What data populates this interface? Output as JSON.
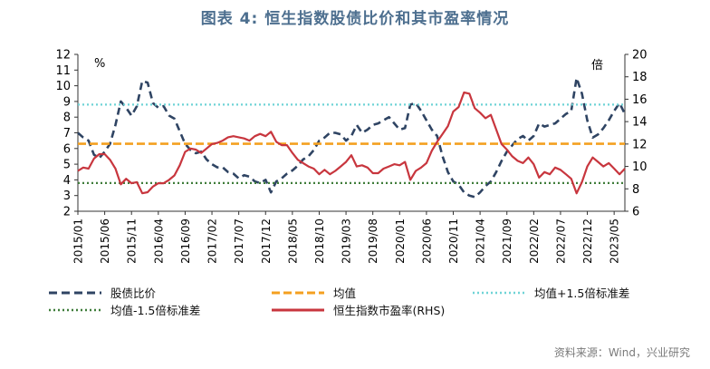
{
  "title": "图表 4:  恒生指数股债比价和其市盈率情况",
  "source": "资料来源：Wind，兴业研究",
  "colors": {
    "title": "#4d6f8f",
    "ratio": "#2f4463",
    "mean": "#f4a020",
    "upper": "#6fd3d6",
    "lower": "#3f7d3a",
    "pe": "#c8363e",
    "source": "#7a7a7a",
    "axis": "#333333"
  },
  "chart_data": {
    "type": "line",
    "left_unit": "%",
    "right_unit": "倍",
    "left_ylim": [
      2,
      12
    ],
    "right_ylim": [
      6,
      20
    ],
    "left_ticks": [
      2,
      3,
      4,
      5,
      6,
      7,
      8,
      9,
      10,
      11,
      12
    ],
    "right_ticks": [
      6,
      8,
      10,
      12,
      14,
      16,
      18,
      20
    ],
    "x_range": [
      "2015-01",
      "2023-07"
    ],
    "x_ticks": [
      "2015/01",
      "2015/06",
      "2015/11",
      "2016/04",
      "2016/09",
      "2017/02",
      "2017/07",
      "2017/12",
      "2018/05",
      "2018/10",
      "2019/03",
      "2019/08",
      "2020/01",
      "2020/06",
      "2020/11",
      "2021/04",
      "2021/09",
      "2022/02",
      "2022/07",
      "2022/12",
      "2023/05"
    ],
    "grid": false,
    "legend_position": "bottom",
    "series": [
      {
        "name": "股债比价",
        "axis": "left",
        "style": "dashed",
        "points": [
          [
            "2015-01",
            7.0
          ],
          [
            "2015-02",
            6.7
          ],
          [
            "2015-03",
            6.5
          ],
          [
            "2015-04",
            5.6
          ],
          [
            "2015-05",
            5.4
          ],
          [
            "2015-06",
            5.8
          ],
          [
            "2015-07",
            6.3
          ],
          [
            "2015-08",
            7.5
          ],
          [
            "2015-09",
            9.0
          ],
          [
            "2015-10",
            8.6
          ],
          [
            "2015-11",
            8.1
          ],
          [
            "2015-12",
            8.7
          ],
          [
            "2016-01",
            10.3
          ],
          [
            "2016-02",
            10.2
          ],
          [
            "2016-03",
            8.9
          ],
          [
            "2016-04",
            8.6
          ],
          [
            "2016-05",
            8.7
          ],
          [
            "2016-06",
            8.1
          ],
          [
            "2016-07",
            7.9
          ],
          [
            "2016-08",
            7.1
          ],
          [
            "2016-09",
            6.3
          ],
          [
            "2016-10",
            5.9
          ],
          [
            "2016-11",
            5.7
          ],
          [
            "2016-12",
            5.8
          ],
          [
            "2017-01",
            5.3
          ],
          [
            "2017-02",
            5.0
          ],
          [
            "2017-03",
            4.8
          ],
          [
            "2017-04",
            4.8
          ],
          [
            "2017-05",
            4.5
          ],
          [
            "2017-06",
            4.4
          ],
          [
            "2017-07",
            4.1
          ],
          [
            "2017-08",
            4.3
          ],
          [
            "2017-09",
            4.2
          ],
          [
            "2017-10",
            3.9
          ],
          [
            "2017-11",
            3.8
          ],
          [
            "2017-12",
            4.0
          ],
          [
            "2018-01",
            3.2
          ],
          [
            "2018-02",
            3.9
          ],
          [
            "2018-03",
            4.1
          ],
          [
            "2018-04",
            4.4
          ],
          [
            "2018-05",
            4.6
          ],
          [
            "2018-06",
            4.9
          ],
          [
            "2018-07",
            5.3
          ],
          [
            "2018-08",
            5.5
          ],
          [
            "2018-09",
            5.9
          ],
          [
            "2018-10",
            6.5
          ],
          [
            "2018-11",
            6.7
          ],
          [
            "2018-12",
            7.0
          ],
          [
            "2019-01",
            7.0
          ],
          [
            "2019-02",
            6.9
          ],
          [
            "2019-03",
            6.5
          ],
          [
            "2019-04",
            6.8
          ],
          [
            "2019-05",
            7.5
          ],
          [
            "2019-06",
            7.0
          ],
          [
            "2019-07",
            7.2
          ],
          [
            "2019-08",
            7.5
          ],
          [
            "2019-09",
            7.6
          ],
          [
            "2019-10",
            7.8
          ],
          [
            "2019-11",
            8.0
          ],
          [
            "2019-12",
            7.6
          ],
          [
            "2020-01",
            7.2
          ],
          [
            "2020-02",
            7.3
          ],
          [
            "2020-03",
            8.8
          ],
          [
            "2020-04",
            8.9
          ],
          [
            "2020-05",
            8.4
          ],
          [
            "2020-06",
            7.8
          ],
          [
            "2020-07",
            7.2
          ],
          [
            "2020-08",
            6.8
          ],
          [
            "2020-09",
            5.5
          ],
          [
            "2020-10",
            4.5
          ],
          [
            "2020-11",
            3.9
          ],
          [
            "2020-12",
            3.7
          ],
          [
            "2021-01",
            3.2
          ],
          [
            "2021-02",
            3.0
          ],
          [
            "2021-03",
            2.9
          ],
          [
            "2021-04",
            3.2
          ],
          [
            "2021-05",
            3.6
          ],
          [
            "2021-06",
            3.9
          ],
          [
            "2021-07",
            4.5
          ],
          [
            "2021-08",
            5.2
          ],
          [
            "2021-09",
            5.8
          ],
          [
            "2021-10",
            6.2
          ],
          [
            "2021-11",
            6.6
          ],
          [
            "2021-12",
            6.8
          ],
          [
            "2022-01",
            6.5
          ],
          [
            "2022-02",
            6.8
          ],
          [
            "2022-03",
            7.6
          ],
          [
            "2022-04",
            7.4
          ],
          [
            "2022-05",
            7.5
          ],
          [
            "2022-06",
            7.6
          ],
          [
            "2022-07",
            7.9
          ],
          [
            "2022-08",
            8.2
          ],
          [
            "2022-09",
            8.4
          ],
          [
            "2022-10",
            10.5
          ],
          [
            "2022-11",
            9.5
          ],
          [
            "2022-12",
            7.8
          ],
          [
            "2023-01",
            6.7
          ],
          [
            "2023-02",
            6.9
          ],
          [
            "2023-03",
            7.3
          ],
          [
            "2023-04",
            7.8
          ],
          [
            "2023-05",
            8.4
          ],
          [
            "2023-06",
            8.9
          ],
          [
            "2023-07",
            8.2
          ]
        ]
      },
      {
        "name": "均值",
        "axis": "left",
        "style": "dashed-thick",
        "constant": 6.3
      },
      {
        "name": "均值+1.5倍标准差",
        "axis": "left",
        "style": "dotted",
        "constant": 8.8
      },
      {
        "name": "均值-1.5倍标准差",
        "axis": "left",
        "style": "dotted",
        "constant": 3.8
      },
      {
        "name": "恒生指数市盈率(RHS)",
        "axis": "right",
        "style": "solid",
        "points": [
          [
            "2015-01",
            9.6
          ],
          [
            "2015-02",
            9.9
          ],
          [
            "2015-03",
            9.8
          ],
          [
            "2015-04",
            10.7
          ],
          [
            "2015-05",
            11.1
          ],
          [
            "2015-06",
            11.1
          ],
          [
            "2015-07",
            10.6
          ],
          [
            "2015-08",
            9.8
          ],
          [
            "2015-09",
            8.4
          ],
          [
            "2015-10",
            8.9
          ],
          [
            "2015-11",
            8.5
          ],
          [
            "2015-12",
            8.6
          ],
          [
            "2016-01",
            7.6
          ],
          [
            "2016-02",
            7.7
          ],
          [
            "2016-03",
            8.2
          ],
          [
            "2016-04",
            8.5
          ],
          [
            "2016-05",
            8.5
          ],
          [
            "2016-06",
            8.8
          ],
          [
            "2016-07",
            9.2
          ],
          [
            "2016-08",
            10.1
          ],
          [
            "2016-09",
            11.3
          ],
          [
            "2016-10",
            11.6
          ],
          [
            "2016-11",
            11.5
          ],
          [
            "2016-12",
            11.2
          ],
          [
            "2017-01",
            11.6
          ],
          [
            "2017-02",
            12.0
          ],
          [
            "2017-03",
            12.1
          ],
          [
            "2017-04",
            12.3
          ],
          [
            "2017-05",
            12.6
          ],
          [
            "2017-06",
            12.7
          ],
          [
            "2017-07",
            12.6
          ],
          [
            "2017-08",
            12.5
          ],
          [
            "2017-09",
            12.3
          ],
          [
            "2017-10",
            12.7
          ],
          [
            "2017-11",
            12.9
          ],
          [
            "2017-12",
            12.7
          ],
          [
            "2018-01",
            13.1
          ],
          [
            "2018-02",
            12.2
          ],
          [
            "2018-03",
            11.9
          ],
          [
            "2018-04",
            11.9
          ],
          [
            "2018-05",
            11.2
          ],
          [
            "2018-06",
            10.6
          ],
          [
            "2018-07",
            10.3
          ],
          [
            "2018-08",
            10.0
          ],
          [
            "2018-09",
            9.8
          ],
          [
            "2018-10",
            9.3
          ],
          [
            "2018-11",
            9.7
          ],
          [
            "2018-12",
            9.3
          ],
          [
            "2019-01",
            9.6
          ],
          [
            "2019-02",
            10.0
          ],
          [
            "2019-03",
            10.4
          ],
          [
            "2019-04",
            11.0
          ],
          [
            "2019-05",
            10.0
          ],
          [
            "2019-06",
            10.1
          ],
          [
            "2019-07",
            9.9
          ],
          [
            "2019-08",
            9.4
          ],
          [
            "2019-09",
            9.4
          ],
          [
            "2019-10",
            9.8
          ],
          [
            "2019-11",
            10.0
          ],
          [
            "2019-12",
            10.2
          ],
          [
            "2020-01",
            10.1
          ],
          [
            "2020-02",
            10.4
          ],
          [
            "2020-03",
            8.8
          ],
          [
            "2020-04",
            9.6
          ],
          [
            "2020-05",
            9.9
          ],
          [
            "2020-06",
            10.3
          ],
          [
            "2020-07",
            11.4
          ],
          [
            "2020-08",
            12.2
          ],
          [
            "2020-09",
            12.9
          ],
          [
            "2020-10",
            13.6
          ],
          [
            "2020-11",
            14.9
          ],
          [
            "2020-12",
            15.3
          ],
          [
            "2021-01",
            16.6
          ],
          [
            "2021-02",
            16.5
          ],
          [
            "2021-03",
            15.2
          ],
          [
            "2021-04",
            14.8
          ],
          [
            "2021-05",
            14.3
          ],
          [
            "2021-06",
            14.6
          ],
          [
            "2021-07",
            13.3
          ],
          [
            "2021-08",
            12.0
          ],
          [
            "2021-09",
            11.5
          ],
          [
            "2021-10",
            10.9
          ],
          [
            "2021-11",
            10.5
          ],
          [
            "2021-12",
            10.3
          ],
          [
            "2022-01",
            10.8
          ],
          [
            "2022-02",
            10.2
          ],
          [
            "2022-03",
            9.0
          ],
          [
            "2022-04",
            9.5
          ],
          [
            "2022-05",
            9.3
          ],
          [
            "2022-06",
            9.9
          ],
          [
            "2022-07",
            9.7
          ],
          [
            "2022-08",
            9.3
          ],
          [
            "2022-09",
            8.9
          ],
          [
            "2022-10",
            7.6
          ],
          [
            "2022-11",
            8.6
          ],
          [
            "2022-12",
            10.0
          ],
          [
            "2023-01",
            10.8
          ],
          [
            "2023-02",
            10.4
          ],
          [
            "2023-03",
            10.0
          ],
          [
            "2023-04",
            10.3
          ],
          [
            "2023-05",
            9.8
          ],
          [
            "2023-06",
            9.3
          ],
          [
            "2023-07",
            9.8
          ]
        ]
      }
    ]
  }
}
